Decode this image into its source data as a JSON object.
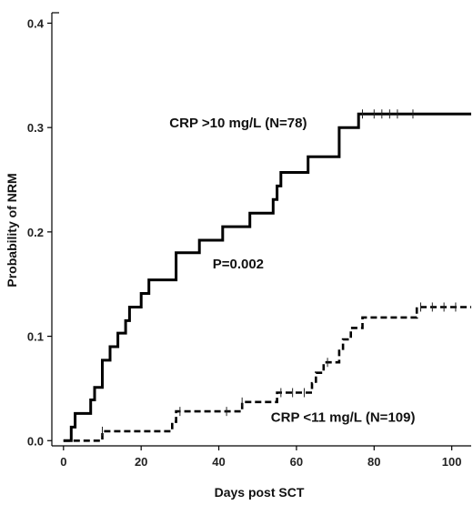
{
  "chart_data": {
    "type": "line",
    "subtype": "kaplan-meier step",
    "xlabel": "Days post SCT",
    "ylabel": "Probability of NRM",
    "xlim": [
      -3,
      105
    ],
    "ylim": [
      -0.005,
      0.41
    ],
    "x_ticks": [
      0,
      20,
      40,
      60,
      80,
      100
    ],
    "x_tick_labels": [
      "0",
      "20",
      "40",
      "60",
      "80",
      "100"
    ],
    "y_ticks": [
      0.0,
      0.1,
      0.2,
      0.3,
      0.4
    ],
    "y_tick_labels": [
      "0.0",
      "0.1",
      "0.2",
      "0.3",
      "0.4"
    ],
    "grid": false,
    "legend": "none",
    "series": [
      {
        "name": "CRP >10 mg/L (N=78)",
        "style": "solid",
        "color": "#000000",
        "steps": [
          [
            0,
            0.0
          ],
          [
            2,
            0.013
          ],
          [
            3,
            0.026
          ],
          [
            7,
            0.039
          ],
          [
            8,
            0.051
          ],
          [
            10,
            0.077
          ],
          [
            12,
            0.09
          ],
          [
            14,
            0.103
          ],
          [
            16,
            0.115
          ],
          [
            17,
            0.128
          ],
          [
            20,
            0.141
          ],
          [
            22,
            0.154
          ],
          [
            29,
            0.18
          ],
          [
            35,
            0.192
          ],
          [
            41,
            0.205
          ],
          [
            48,
            0.218
          ],
          [
            54,
            0.231
          ],
          [
            55,
            0.244
          ],
          [
            56,
            0.257
          ],
          [
            63,
            0.272
          ],
          [
            71,
            0.3
          ],
          [
            76,
            0.313
          ],
          [
            105,
            0.313
          ]
        ],
        "censor_x": [
          77,
          80,
          82,
          84,
          86,
          90
        ],
        "censor_y": 0.313
      },
      {
        "name": "CRP <11 mg/L (N=109)",
        "style": "dashed",
        "color": "#000000",
        "steps": [
          [
            0,
            0.0
          ],
          [
            10,
            0.009
          ],
          [
            28,
            0.018
          ],
          [
            29,
            0.028
          ],
          [
            46,
            0.037
          ],
          [
            55,
            0.046
          ],
          [
            64,
            0.055
          ],
          [
            65,
            0.065
          ],
          [
            67,
            0.075
          ],
          [
            71,
            0.086
          ],
          [
            72,
            0.097
          ],
          [
            74,
            0.108
          ],
          [
            77,
            0.118
          ],
          [
            91,
            0.128
          ],
          [
            105,
            0.128
          ]
        ],
        "censor": [
          [
            10,
            0.009
          ],
          [
            30,
            0.028
          ],
          [
            42,
            0.028
          ],
          [
            46,
            0.037
          ],
          [
            56,
            0.046
          ],
          [
            59,
            0.046
          ],
          [
            62,
            0.046
          ],
          [
            68,
            0.075
          ],
          [
            92,
            0.128
          ],
          [
            95,
            0.128
          ],
          [
            98,
            0.128
          ],
          [
            101,
            0.128
          ]
        ]
      }
    ],
    "annotations": [
      {
        "text": "CRP >10 mg/L (N=78)",
        "x": 45,
        "y": 0.3
      },
      {
        "text": "P=0.002",
        "x": 45,
        "y": 0.165
      },
      {
        "text": "CRP <11 mg/L (N=109)",
        "x": 72,
        "y": 0.018
      }
    ]
  }
}
